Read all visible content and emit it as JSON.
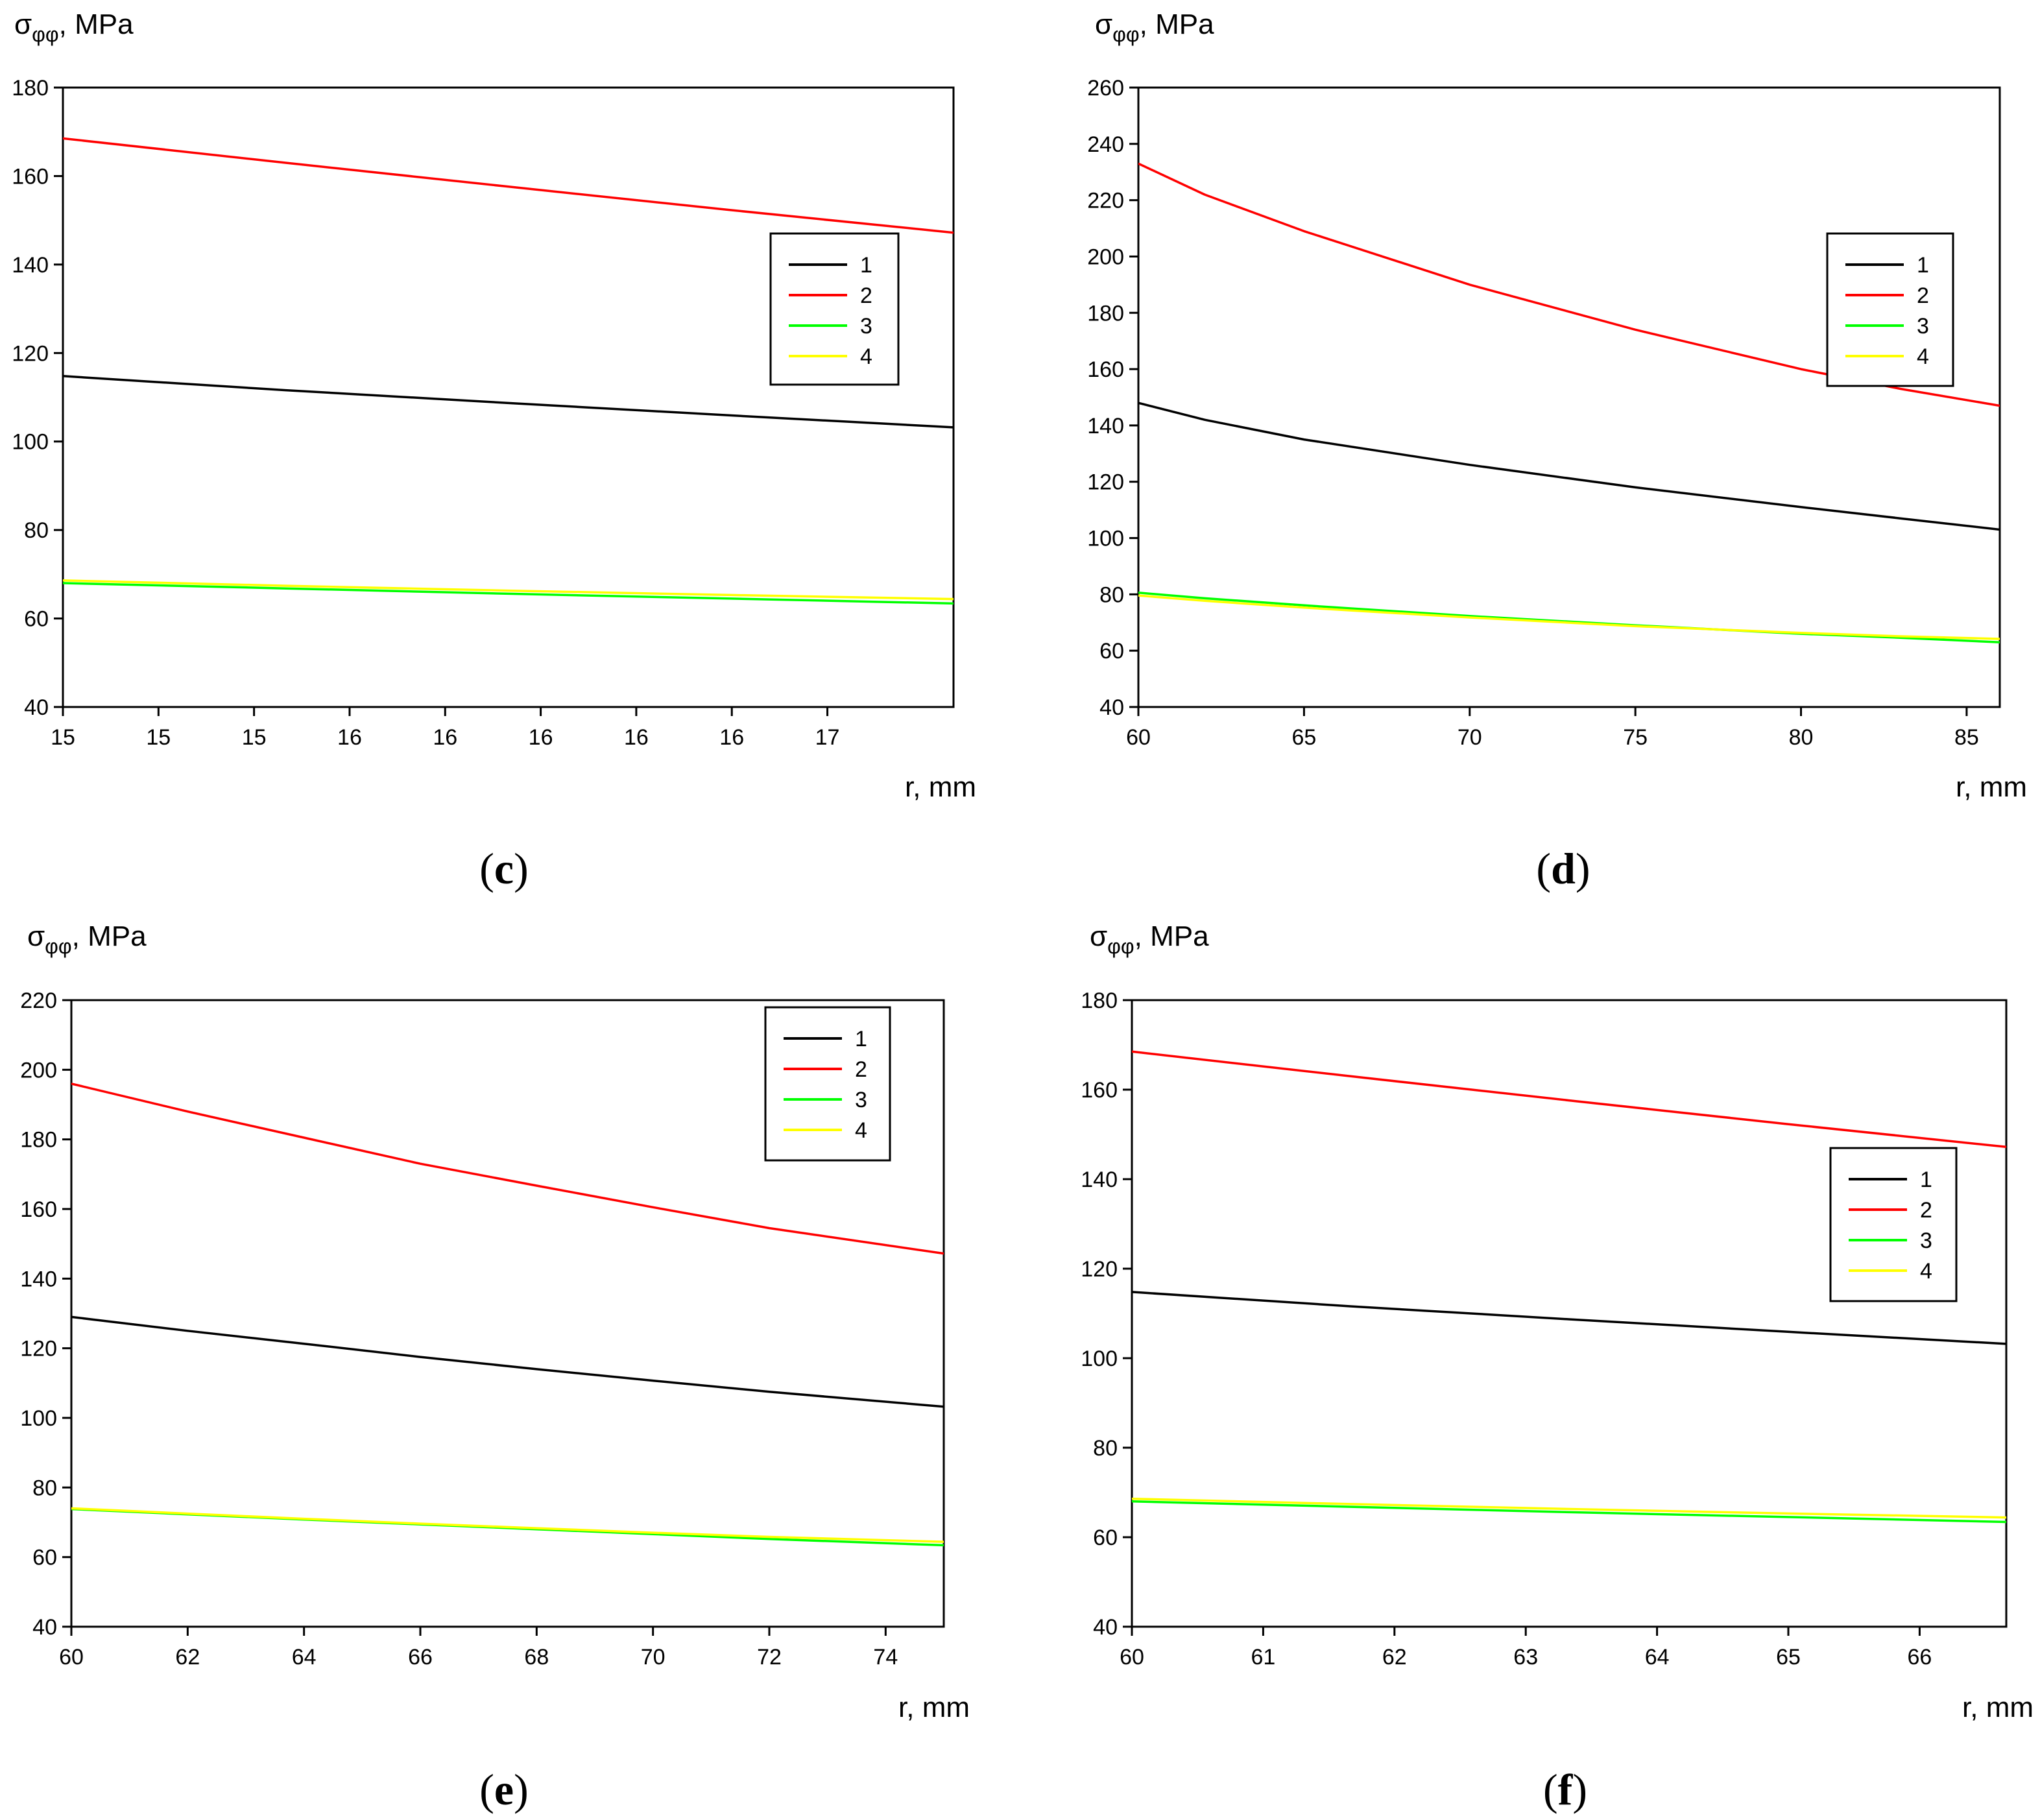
{
  "chart_data": [
    {
      "type": "line",
      "panel_label": "c",
      "ylabel": {
        "symbol": "σ",
        "subscript": "φφ",
        "unit": ", MPa"
      },
      "xlabel": "r, mm",
      "xlim": [
        15,
        17.33
      ],
      "ylim": [
        40,
        180
      ],
      "xticks": [
        15,
        15.25,
        15.5,
        15.75,
        16,
        16.25,
        16.5,
        16.75,
        17
      ],
      "xtick_labels": [
        "15",
        "15",
        "15",
        "16",
        "16",
        "16",
        "16",
        "16",
        "17"
      ],
      "yticks": [
        40,
        60,
        80,
        100,
        120,
        140,
        160,
        180
      ],
      "ytick_labels": [
        "40",
        "60",
        "80",
        "100",
        "120",
        "140",
        "160",
        "180"
      ],
      "legend": {
        "position": "right-middle",
        "entries": [
          "1",
          "2",
          "3",
          "4"
        ]
      },
      "x": [
        15,
        15.583,
        16.166,
        16.749,
        17.33
      ],
      "series": [
        {
          "name": "1",
          "color": "#000000",
          "values": [
            114.8,
            111.6,
            108.7,
            105.9,
            103.2
          ]
        },
        {
          "name": "2",
          "color": "#ff0000",
          "values": [
            168.5,
            163.0,
            157.6,
            152.3,
            147.2
          ]
        },
        {
          "name": "3",
          "color": "#00ff00",
          "values": [
            68.0,
            66.8,
            65.6,
            64.5,
            63.4
          ]
        },
        {
          "name": "4",
          "color": "#ffff00",
          "values": [
            68.6,
            67.4,
            66.3,
            65.3,
            64.4
          ]
        }
      ]
    },
    {
      "type": "line",
      "panel_label": "d",
      "ylabel": {
        "symbol": "σ",
        "subscript": "φφ",
        "unit": ", MPa"
      },
      "xlabel": "r, mm",
      "xlim": [
        60,
        86
      ],
      "ylim": [
        40,
        260
      ],
      "xticks": [
        60,
        65,
        70,
        75,
        80,
        85
      ],
      "xtick_labels": [
        "60",
        "65",
        "70",
        "75",
        "80",
        "85"
      ],
      "yticks": [
        40,
        60,
        80,
        100,
        120,
        140,
        160,
        180,
        200,
        220,
        240,
        260
      ],
      "ytick_labels": [
        "40",
        "60",
        "80",
        "100",
        "120",
        "140",
        "160",
        "180",
        "200",
        "220",
        "240",
        "260"
      ],
      "legend": {
        "position": "top-right",
        "entries": [
          "1",
          "2",
          "3",
          "4"
        ]
      },
      "x": [
        60,
        62,
        65,
        70,
        75,
        80,
        83,
        86
      ],
      "series": [
        {
          "name": "1",
          "color": "#000000",
          "values": [
            148.0,
            142.0,
            135.0,
            126.0,
            118.0,
            111.0,
            107.0,
            103.0
          ]
        },
        {
          "name": "2",
          "color": "#ff0000",
          "values": [
            233.0,
            222.0,
            209.0,
            190.0,
            174.0,
            160.0,
            153.0,
            147.0
          ]
        },
        {
          "name": "3",
          "color": "#00ff00",
          "values": [
            80.6,
            78.6,
            76.1,
            72.3,
            69.0,
            66.0,
            64.6,
            63.0
          ]
        },
        {
          "name": "4",
          "color": "#ffff00",
          "values": [
            79.6,
            77.7,
            75.3,
            71.8,
            68.7,
            66.3,
            65.1,
            64.2
          ]
        }
      ]
    },
    {
      "type": "line",
      "panel_label": "e",
      "ylabel": {
        "symbol": "σ",
        "subscript": "φφ",
        "unit": ", MPa"
      },
      "xlabel": "r, mm",
      "xlim": [
        60,
        75
      ],
      "ylim": [
        40,
        220
      ],
      "xticks": [
        60,
        62,
        64,
        66,
        68,
        70,
        72,
        74
      ],
      "xtick_labels": [
        "60",
        "62",
        "64",
        "66",
        "68",
        "70",
        "72",
        "74"
      ],
      "yticks": [
        40,
        60,
        80,
        100,
        120,
        140,
        160,
        180,
        200,
        220
      ],
      "ytick_labels": [
        "40",
        "60",
        "80",
        "100",
        "120",
        "140",
        "160",
        "180",
        "200",
        "220"
      ],
      "legend": {
        "position": "top-right",
        "entries": [
          "1",
          "2",
          "3",
          "4"
        ]
      },
      "x": [
        60,
        62,
        64,
        66,
        68,
        70,
        72,
        75
      ],
      "series": [
        {
          "name": "1",
          "color": "#000000",
          "values": [
            129.0,
            125.0,
            121.3,
            117.5,
            114.0,
            110.7,
            107.5,
            103.2
          ]
        },
        {
          "name": "2",
          "color": "#ff0000",
          "values": [
            196.0,
            188.0,
            180.5,
            173.0,
            166.7,
            160.5,
            154.5,
            147.2
          ]
        },
        {
          "name": "3",
          "color": "#00ff00",
          "values": [
            73.8,
            72.3,
            70.8,
            69.4,
            68.0,
            66.6,
            65.2,
            63.4
          ]
        },
        {
          "name": "4",
          "color": "#ffff00",
          "values": [
            74.0,
            72.5,
            71.0,
            69.6,
            68.3,
            67.0,
            65.8,
            64.4
          ]
        }
      ]
    },
    {
      "type": "line",
      "panel_label": "f",
      "ylabel": {
        "symbol": "σ",
        "subscript": "φφ",
        "unit": ", MPa"
      },
      "xlabel": "r, mm",
      "xlim": [
        60,
        66.66
      ],
      "ylim": [
        40,
        180
      ],
      "xticks": [
        60,
        61,
        62,
        63,
        64,
        65,
        66
      ],
      "xtick_labels": [
        "60",
        "61",
        "62",
        "63",
        "64",
        "65",
        "66"
      ],
      "yticks": [
        40,
        60,
        80,
        100,
        120,
        140,
        160,
        180
      ],
      "ytick_labels": [
        "40",
        "60",
        "80",
        "100",
        "120",
        "140",
        "160",
        "180"
      ],
      "legend": {
        "position": "right-middle",
        "entries": [
          "1",
          "2",
          "3",
          "4"
        ]
      },
      "x": [
        60,
        61.665,
        63.33,
        64.995,
        66.66
      ],
      "series": [
        {
          "name": "1",
          "color": "#000000",
          "values": [
            114.8,
            111.6,
            108.7,
            105.9,
            103.2
          ]
        },
        {
          "name": "2",
          "color": "#ff0000",
          "values": [
            168.5,
            163.0,
            157.6,
            152.3,
            147.2
          ]
        },
        {
          "name": "3",
          "color": "#00ff00",
          "values": [
            68.0,
            66.8,
            65.6,
            64.5,
            63.4
          ]
        },
        {
          "name": "4",
          "color": "#ffff00",
          "values": [
            68.6,
            67.4,
            66.3,
            65.3,
            64.4
          ]
        }
      ]
    }
  ]
}
